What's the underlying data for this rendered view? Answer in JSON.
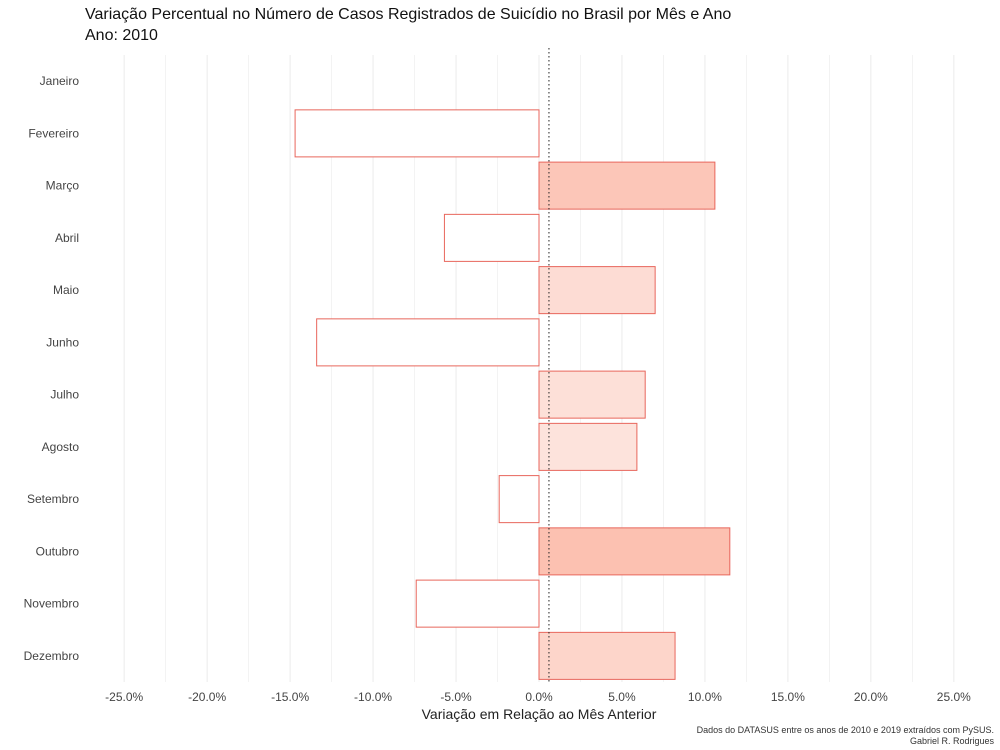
{
  "header": {
    "title": "Variação Percentual no Número de Casos Registrados de Suicídio no Brasil por Mês e Ano",
    "subtitle": "Ano: 2010"
  },
  "footer": {
    "caption_line1": "Dados do DATASUS entre os anos de 2010 e 2019 extraídos com PySUS.",
    "caption_line2": "Gabriel R. Rodrigues"
  },
  "chart_data": {
    "type": "bar",
    "orientation": "horizontal",
    "title": "Variação Percentual no Número de Casos Registrados de Suicídio no Brasil por Mês e Ano",
    "subtitle": "Ano: 2010",
    "xlabel": "Variação em Relação ao Mês Anterior",
    "ylabel": "",
    "categories": [
      "Janeiro",
      "Fevereiro",
      "Março",
      "Abril",
      "Maio",
      "Junho",
      "Julho",
      "Agosto",
      "Setembro",
      "Outubro",
      "Novembro",
      "Dezembro"
    ],
    "values": [
      null,
      -14.7,
      10.6,
      -5.7,
      7.0,
      -13.4,
      6.4,
      5.9,
      -2.4,
      11.5,
      -7.4,
      8.2
    ],
    "xlim": [
      -27,
      27
    ],
    "xticks": [
      -25,
      -20,
      -15,
      -10,
      -5,
      0,
      5,
      10,
      15,
      20,
      25
    ],
    "xtick_labels": [
      "-25.0%",
      "-20.0%",
      "-15.0%",
      "-10.0%",
      "-5.0%",
      "0.0%",
      "5.0%",
      "10.0%",
      "15.0%",
      "20.0%",
      "25.0%"
    ],
    "reference_line": 0.6,
    "grid": true,
    "legend": "none",
    "colors": {
      "stroke": "#e8665c",
      "fill_low": "#fde3dc",
      "fill_high": "#fcc1b1",
      "fill_negative": "#ffffff",
      "grid": "#ebebeb"
    }
  }
}
